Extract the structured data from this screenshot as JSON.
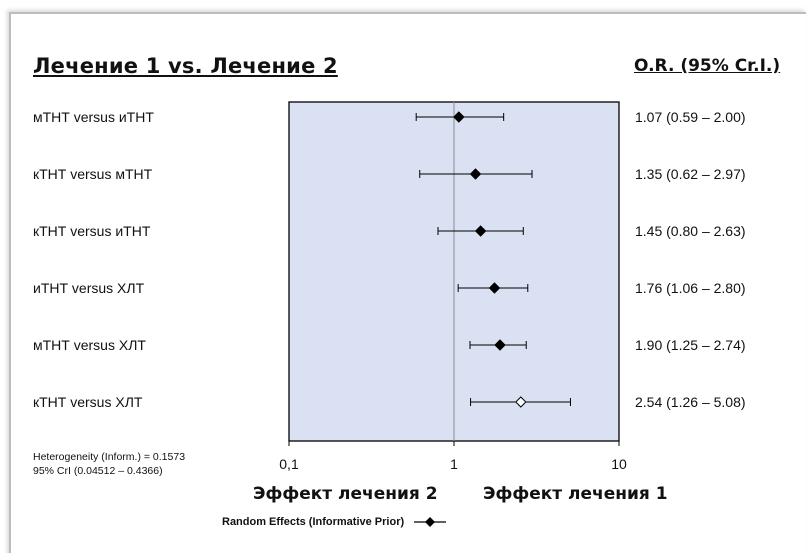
{
  "title": "Лечение 1 vs. Лечение 2",
  "or_header": "O.R. (95% Cr.I.)",
  "heterogeneity": {
    "line1": "Heterogeneity (Inform.) = 0.1573",
    "line2": "95% CrI (0.04512 – 0.4366)"
  },
  "effect_labels": {
    "left": "Эффект лечения 2",
    "right": "Эффект лечения 1"
  },
  "legend": {
    "label": "Random Effects  (Informative Prior)"
  },
  "colors": {
    "plot_bg": "#d9e1f2",
    "marker": "#000000",
    "open_marker": "#ffffff",
    "ref_line": "#8c8c8c"
  },
  "chart_data": {
    "type": "forest",
    "x_scale": "log",
    "xlim": [
      0.1,
      10
    ],
    "x_ticks": [
      "0,1",
      "1",
      "10"
    ],
    "x_tick_values": [
      0.1,
      1,
      10
    ],
    "reference_line": 1,
    "rows": [
      {
        "label": "мТНТ versus иТНТ",
        "or": 1.07,
        "lo": 0.59,
        "hi": 2.0,
        "text": "1.07 (0.59 – 2.00)",
        "open": false
      },
      {
        "label": "кТНТ versus мТНТ",
        "or": 1.35,
        "lo": 0.62,
        "hi": 2.97,
        "text": "1.35 (0.62 – 2.97)",
        "open": false
      },
      {
        "label": "кТНТ versus иТНТ",
        "or": 1.45,
        "lo": 0.8,
        "hi": 2.63,
        "text": "1.45 (0.80 – 2.63)",
        "open": false
      },
      {
        "label": "иТНТ versus ХЛТ",
        "or": 1.76,
        "lo": 1.06,
        "hi": 2.8,
        "text": "1.76 (1.06 – 2.80)",
        "open": false
      },
      {
        "label": "мТНТ versus ХЛТ",
        "or": 1.9,
        "lo": 1.25,
        "hi": 2.74,
        "text": "1.90 (1.25 – 2.74)",
        "open": false
      },
      {
        "label": "кТНТ versus ХЛТ",
        "or": 2.54,
        "lo": 1.26,
        "hi": 5.08,
        "text": "2.54 (1.26 – 5.08)",
        "open": true
      }
    ]
  }
}
